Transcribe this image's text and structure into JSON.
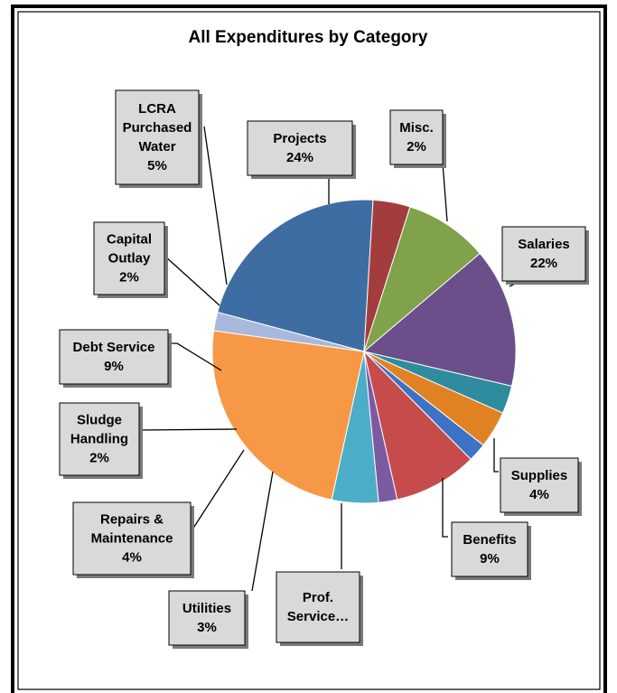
{
  "chart_data": {
    "type": "pie",
    "title": "All Expenditures by Category",
    "slices": [
      {
        "label_lines": [
          "Salaries"
        ],
        "pct_label": "22%",
        "value": 22,
        "color": "#3d6da3"
      },
      {
        "label_lines": [
          "Supplies"
        ],
        "pct_label": "4%",
        "value": 4,
        "color": "#a33d3d"
      },
      {
        "label_lines": [
          "Benefits"
        ],
        "pct_label": "9%",
        "value": 9,
        "color": "#7fa24a"
      },
      {
        "label_lines": [
          "Prof.",
          "Service…"
        ],
        "pct_label": "",
        "value": 15,
        "color": "#6a4f8b"
      },
      {
        "label_lines": [
          "Utilities"
        ],
        "pct_label": "3%",
        "value": 3,
        "color": "#2e8c9e"
      },
      {
        "label_lines": [
          "Repairs &",
          "Maintenance"
        ],
        "pct_label": "4%",
        "value": 4,
        "color": "#e08224"
      },
      {
        "label_lines": [
          "Sludge",
          "Handling"
        ],
        "pct_label": "2%",
        "value": 2,
        "color": "#3d72c4"
      },
      {
        "label_lines": [
          "Debt Service"
        ],
        "pct_label": "9%",
        "value": 9,
        "color": "#c64c4c"
      },
      {
        "label_lines": [
          "Capital",
          "Outlay"
        ],
        "pct_label": "2%",
        "value": 2,
        "color": "#7b5aa2"
      },
      {
        "label_lines": [
          "LCRA",
          "Purchased",
          "Water"
        ],
        "pct_label": "5%",
        "value": 5,
        "color": "#4badc8"
      },
      {
        "label_lines": [
          "Projects"
        ],
        "pct_label": "24%",
        "value": 24,
        "color": "#f79847"
      },
      {
        "label_lines": [
          "Misc."
        ],
        "pct_label": "2%",
        "value": 2,
        "color": "#a8b8dc"
      }
    ]
  }
}
